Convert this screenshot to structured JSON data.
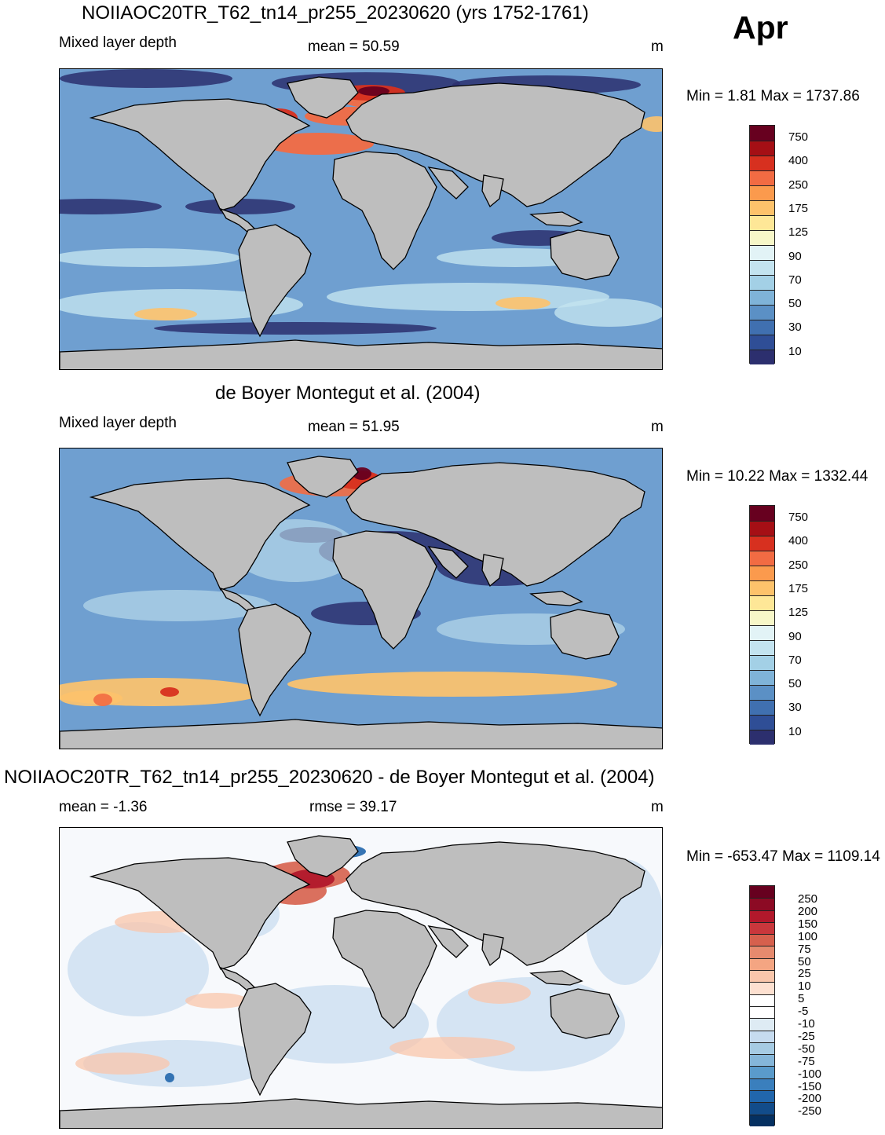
{
  "month": "Apr",
  "panels": [
    {
      "title": "NOIIAOC20TR_T62_tn14_pr255_20230620 (yrs 1752-1761)",
      "left_label": "Mixed layer depth",
      "center_label": "mean =  50.59",
      "units": "m",
      "minmax": "Min =   1.81 Max = 1737.86"
    },
    {
      "title": "de Boyer Montegut et al. (2004)",
      "left_label": "Mixed layer depth",
      "center_label": "mean =  51.95",
      "units": "m",
      "minmax": "Min =  10.22 Max = 1332.44"
    },
    {
      "title": "NOIIAOC20TR_T62_tn14_pr255_20230620 - de Boyer Montegut et al. (2004)",
      "left_label": "mean =  -1.36",
      "center_label": "rmse =  39.17",
      "units": "m",
      "minmax": "Min = -653.47 Max = 1109.14"
    }
  ],
  "colorbar_mld": {
    "labels": [
      "750",
      "400",
      "250",
      "175",
      "125",
      "90",
      "70",
      "50",
      "30",
      "10"
    ],
    "colors": [
      "#67001f",
      "#a50f15",
      "#d7301f",
      "#f26b43",
      "#fb9a4d",
      "#fdc26b",
      "#fee797",
      "#f7f7c8",
      "#e2f3f6",
      "#c3e3ef",
      "#a3d0e6",
      "#7fb3d8",
      "#5b90c5",
      "#4070b0",
      "#2f4e96",
      "#2c2f6e"
    ]
  },
  "colorbar_diff": {
    "labels": [
      "250",
      "200",
      "150",
      "100",
      "75",
      "50",
      "25",
      "10",
      "5",
      "-5",
      "-10",
      "-25",
      "-50",
      "-75",
      "-100",
      "-150",
      "-200",
      "-250"
    ],
    "colors": [
      "#67001f",
      "#8c0a24",
      "#b2182b",
      "#c9373c",
      "#d6604d",
      "#e68a6e",
      "#f4a582",
      "#f9c6ab",
      "#fde0d0",
      "#ffffff",
      "#ffffff",
      "#deebf4",
      "#c6dbef",
      "#a6cbe3",
      "#85b6d9",
      "#5a9bcb",
      "#3a7fbd",
      "#2166ac",
      "#124c8a",
      "#053061"
    ]
  },
  "land_color": "#bebebe",
  "ocean_color_mld": "#6f9fd0",
  "ocean_color_diff": "#f7f9fc"
}
